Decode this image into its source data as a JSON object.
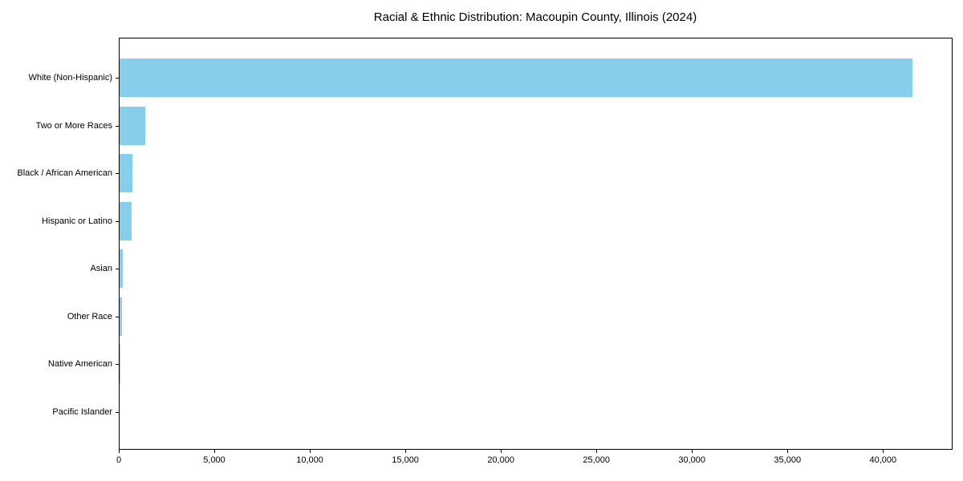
{
  "figure": {
    "title": "Racial & Ethnic Distribution: Macoupin County, Illinois (2024)"
  },
  "colors": {
    "bar": "#87CEEB",
    "axis": "#000000",
    "background": "#FFFFFF",
    "text": "#000000"
  },
  "chart_data": {
    "type": "bar",
    "orientation": "horizontal",
    "title": "Racial & Ethnic Distribution: Macoupin County, Illinois (2024)",
    "categories": [
      "White (Non-Hispanic)",
      "Two or More Races",
      "Black / African American",
      "Hispanic or Latino",
      "Asian",
      "Other Race",
      "Native American",
      "Pacific Islander"
    ],
    "values": [
      41500,
      1360,
      670,
      610,
      170,
      110,
      40,
      10
    ],
    "xlabel": "",
    "ylabel": "",
    "xlim": [
      0,
      43600
    ],
    "x_ticks": [
      0,
      5000,
      10000,
      15000,
      20000,
      25000,
      30000,
      35000,
      40000
    ],
    "x_tick_labels": [
      "0",
      "5,000",
      "10,000",
      "15,000",
      "20,000",
      "25,000",
      "30,000",
      "35,000",
      "40,000"
    ],
    "grid": false,
    "legend": null,
    "bar_color": "#87CEEB",
    "largest_bar_on_top": true
  }
}
